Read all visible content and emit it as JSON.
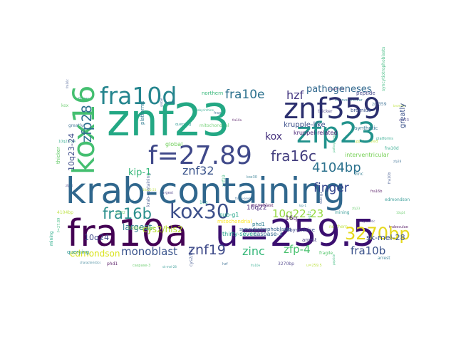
{
  "words": [
    {
      "text": "znf23",
      "color": "#23a884"
    },
    {
      "text": "krab-containing",
      "color": "#30678d"
    },
    {
      "text": "fra10a",
      "color": "#440154"
    },
    {
      "text": "u=259.5",
      "color": "#3b0f70"
    },
    {
      "text": "znf359",
      "color": "#2b2f6e"
    },
    {
      "text": "zfp23",
      "color": "#22928c"
    },
    {
      "text": "f=27.89",
      "color": "#3f4889"
    },
    {
      "text": "fra10d",
      "color": "#25858e"
    },
    {
      "text": "kox16",
      "color": "#44bf70"
    },
    {
      "text": "kox30",
      "color": "#3c4f8a"
    },
    {
      "text": "3270bp",
      "color": "#e5d81d"
    },
    {
      "text": "fra16c",
      "color": "#423d7e"
    },
    {
      "text": "fra16b",
      "color": "#2b8f8c"
    },
    {
      "text": "4104bp",
      "color": "#2c728e"
    },
    {
      "text": "zfp28",
      "color": "#2e6f8e"
    },
    {
      "text": "znf32",
      "color": "#3a538b"
    },
    {
      "text": "znf19",
      "color": "#3e4a89"
    },
    {
      "text": "fra10e",
      "color": "#2c718e"
    },
    {
      "text": "finger",
      "color": "#31428b"
    },
    {
      "text": "zinc",
      "color": "#35b779"
    },
    {
      "text": "zfp-4",
      "color": "#48c16e"
    },
    {
      "text": "fra10b",
      "color": "#3b528b"
    },
    {
      "text": "monoblast",
      "color": "#3a548c"
    },
    {
      "text": "10q22-23",
      "color": "#94d840"
    },
    {
      "text": "hzf",
      "color": "#453882"
    },
    {
      "text": "kox",
      "color": "#46327e"
    },
    {
      "text": "pathogeneses",
      "color": "#31688e"
    },
    {
      "text": "10q23-24",
      "color": "#3e4c8a"
    },
    {
      "text": "edmondson",
      "color": "#d8e219"
    },
    {
      "text": "kip-1",
      "color": "#35b779"
    },
    {
      "text": "largest",
      "color": "#2a788e"
    },
    {
      "text": "cys2/his2",
      "color": "#b5de2b"
    },
    {
      "text": "krupple-like",
      "color": "#3c4f8a"
    },
    {
      "text": "kruppel-related",
      "color": "#482374"
    },
    {
      "text": "greatly",
      "color": "#3b528b"
    },
    {
      "text": "10q24",
      "color": "#3e4989"
    },
    {
      "text": "16q22",
      "color": "#482878"
    },
    {
      "text": "16q",
      "color": "#471365"
    },
    {
      "text": "sk-mel-28",
      "color": "#3b528b"
    },
    {
      "text": "interventricular",
      "color": "#75d054"
    },
    {
      "text": "thicker",
      "color": "#5ec962"
    },
    {
      "text": "global",
      "color": "#6ece58"
    },
    {
      "text": "trabeculae",
      "color": "#7ad151"
    },
    {
      "text": "northern",
      "color": "#35b779"
    },
    {
      "text": "thirty-seven",
      "color": "#1f9e89"
    },
    {
      "text": "caspase-3",
      "color": "#31688e"
    },
    {
      "text": "syncytiotrophoblasts",
      "color": "#34618d"
    },
    {
      "text": "labyrinthine",
      "color": "#3e4989"
    },
    {
      "text": "querying",
      "color": "#21918c"
    },
    {
      "text": "arrest",
      "color": "#443983"
    },
    {
      "text": "synthetic",
      "color": "#2c728e"
    },
    {
      "text": "sub-g1",
      "color": "#20a486"
    },
    {
      "text": "phd1",
      "color": "#287d8e"
    },
    {
      "text": "bromide",
      "color": "#3b528b"
    },
    {
      "text": "fragile",
      "color": "#52c569"
    },
    {
      "text": "mitochondrial",
      "color": "#fde725"
    },
    {
      "text": "peptide",
      "color": "#414487"
    },
    {
      "text": "platforms",
      "color": "#2a788e"
    },
    {
      "text": "mining",
      "color": "#22a884"
    },
    {
      "text": "characteristics",
      "color": "#2a788e"
    }
  ]
}
